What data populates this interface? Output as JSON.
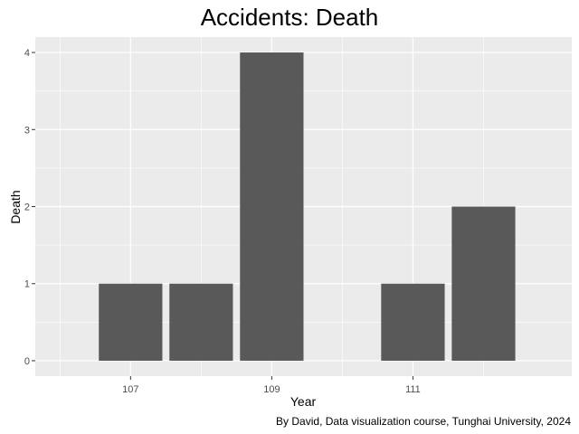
{
  "chart_data": {
    "type": "bar",
    "title": "Accidents: Death",
    "xlabel": "Year",
    "ylabel": "Death",
    "caption": "By David, Data visualization course, Tunghai University, 2024",
    "x": [
      107,
      108,
      109,
      111,
      112
    ],
    "values": [
      1,
      1,
      4,
      1,
      2
    ],
    "xlim": [
      105.65,
      113.25
    ],
    "ylim": [
      -0.2,
      4.2
    ],
    "x_ticks": [
      107,
      109,
      111
    ],
    "y_ticks": [
      0,
      1,
      2,
      3,
      4
    ],
    "bar_color": "#595959",
    "panel_background": "#ebebeb",
    "grid_color": "#ffffff",
    "grid": true
  }
}
